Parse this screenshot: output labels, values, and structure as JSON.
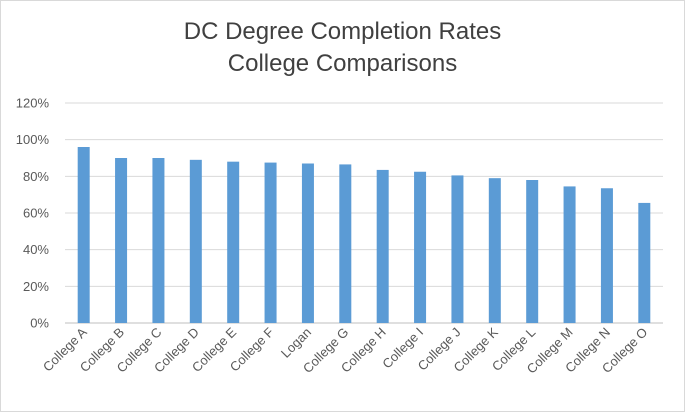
{
  "chart_data": {
    "type": "bar",
    "title_line1": "DC Degree Completion Rates",
    "title_line2": "College Comparisons",
    "categories": [
      "College A",
      "College B",
      "College C",
      "College D",
      "College E",
      "College F",
      "Logan",
      "College G",
      "College H",
      "College I",
      "College J",
      "College K",
      "College L",
      "College M",
      "College N",
      "College O"
    ],
    "values": [
      96,
      90,
      90,
      89,
      88,
      87.5,
      87,
      86.5,
      83.5,
      82.5,
      80.5,
      79,
      78,
      74.5,
      73.5,
      65.5
    ],
    "ylim": [
      0,
      120
    ],
    "yticks": [
      "0%",
      "20%",
      "40%",
      "60%",
      "80%",
      "100%",
      "120%"
    ],
    "ytick_values": [
      0,
      20,
      40,
      60,
      80,
      100,
      120
    ],
    "bar_color": "#5b9bd5",
    "grid": true
  }
}
